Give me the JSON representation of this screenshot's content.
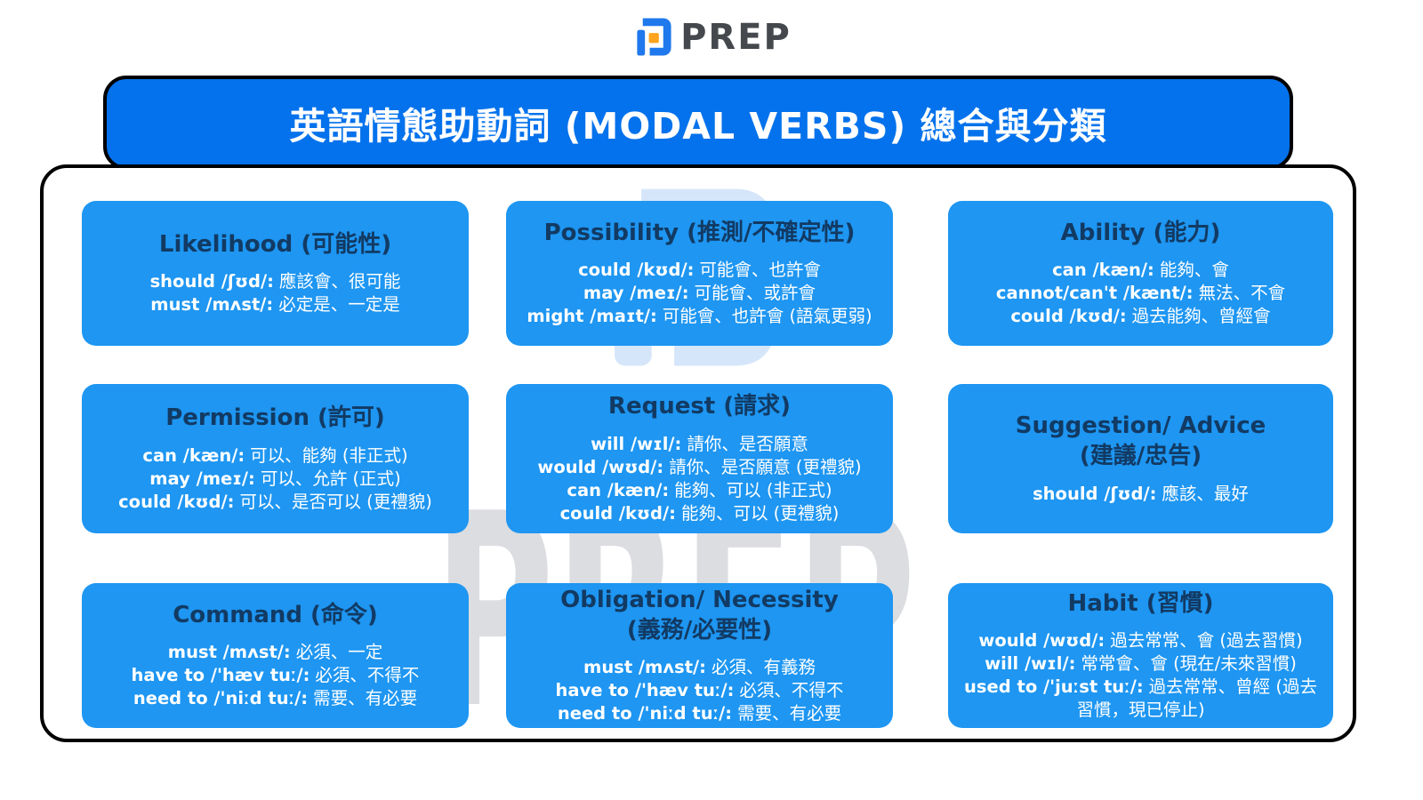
{
  "brand": {
    "wordmark": "PREP"
  },
  "title": "英語情態助動詞 (MODAL VERBS) 總合與分類",
  "watermark": {
    "text": "PREP",
    "logo": "prep-logo-icon"
  },
  "colors": {
    "banner_blue": "#0472EC",
    "card_blue": "#1E96F2",
    "title_navy": "#123A63",
    "card_text": "#FFFFFF",
    "logo_blue": "#1F78EC",
    "logo_orange": "#FFA41D",
    "wordmark_gray": "#45494E",
    "watermark_blue": "#D6E6FA",
    "watermark_blue_square": "#C2DAF8",
    "watermark_gray_text": "#DCDDE0",
    "border_black": "#000000"
  },
  "cards": [
    {
      "slug": "likelihood",
      "title": "Likelihood (可能性)",
      "title2": "",
      "lines": [
        {
          "en": "should /ʃʊd/:",
          "zh": "應該會、很可能"
        },
        {
          "en": "must /mʌst/:",
          "zh": "必定是、一定是"
        }
      ]
    },
    {
      "slug": "possibility",
      "title": "Possibility (推測/不確定性)",
      "title2": "",
      "lines": [
        {
          "en": "could /kʊd/:",
          "zh": "可能會、也許會"
        },
        {
          "en": "may /meɪ/:",
          "zh": "可能會、或許會"
        },
        {
          "en": "might /maɪt/:",
          "zh": "可能會、也許會 (語氣更弱)"
        }
      ]
    },
    {
      "slug": "ability",
      "title": "Ability (能力)",
      "title2": "",
      "lines": [
        {
          "en": "can /kæn/:",
          "zh": "能夠、會"
        },
        {
          "en": "cannot/can't /kænt/:",
          "zh": "無法、不會"
        },
        {
          "en": "could /kʊd/:",
          "zh": "過去能夠、曾經會"
        }
      ]
    },
    {
      "slug": "permission",
      "title": "Permission (許可)",
      "title2": "",
      "lines": [
        {
          "en": "can /kæn/:",
          "zh": "可以、能夠 (非正式)"
        },
        {
          "en": "may /meɪ/:",
          "zh": "可以、允許 (正式)"
        },
        {
          "en": "could /kʊd/:",
          "zh": "可以、是否可以 (更禮貌)"
        }
      ]
    },
    {
      "slug": "request",
      "title": "Request (請求)",
      "title2": "",
      "lines": [
        {
          "en": "will /wɪl/:",
          "zh": "請你、是否願意"
        },
        {
          "en": "would /wʊd/:",
          "zh": "請你、是否願意 (更禮貌)"
        },
        {
          "en": "can /kæn/:",
          "zh": "能夠、可以 (非正式)"
        },
        {
          "en": "could /kʊd/:",
          "zh": "能夠、可以 (更禮貌)"
        }
      ]
    },
    {
      "slug": "suggestion-advice",
      "title": "Suggestion/ Advice",
      "title2": "(建議/忠告)",
      "lines": [
        {
          "en": "should /ʃʊd/:",
          "zh": "應該、最好"
        }
      ]
    },
    {
      "slug": "command",
      "title": "Command (命令)",
      "title2": "",
      "lines": [
        {
          "en": "must /mʌst/:",
          "zh": "必須、一定"
        },
        {
          "en": "have to /'hæv tuː/:",
          "zh": "必須、不得不"
        },
        {
          "en": "need to /'niːd tuː/:",
          "zh": "需要、有必要"
        }
      ]
    },
    {
      "slug": "obligation-necessity",
      "title": "Obligation/ Necessity",
      "title2": "(義務/必要性)",
      "lines": [
        {
          "en": "must /mʌst/:",
          "zh": "必須、有義務"
        },
        {
          "en": "have to /'hæv tuː/:",
          "zh": "必須、不得不"
        },
        {
          "en": "need to /'niːd tuː/:",
          "zh": "需要、有必要"
        }
      ]
    },
    {
      "slug": "habit",
      "title": "Habit (習慣)",
      "title2": "",
      "lines": [
        {
          "en": "would /wʊd/:",
          "zh": "過去常常、會 (過去習慣)"
        },
        {
          "en": "will /wɪl/:",
          "zh": "常常會、會 (現在/未來習慣)"
        },
        {
          "en": "used to /'juːst tuː/:",
          "zh": "過去常常、曾經 (過去習慣，現已停止)"
        }
      ]
    }
  ]
}
